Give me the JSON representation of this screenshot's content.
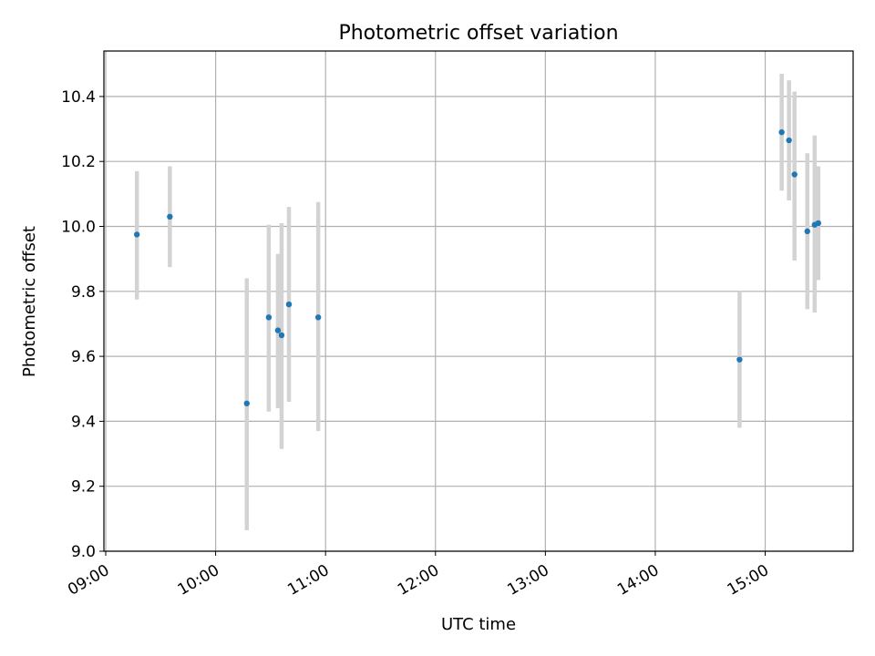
{
  "chart_data": {
    "type": "scatter",
    "title": "Photometric offset variation",
    "xlabel": "UTC time",
    "ylabel": "Photometric offset",
    "xlim": [
      "08:59",
      "15:48"
    ],
    "ylim": [
      9.0,
      10.54
    ],
    "x_ticks": [
      "09:00",
      "10:00",
      "11:00",
      "12:00",
      "13:00",
      "14:00",
      "15:00"
    ],
    "y_ticks": [
      "9.0",
      "9.2",
      "9.4",
      "9.6",
      "9.8",
      "10.0",
      "10.2",
      "10.4"
    ],
    "grid": true,
    "colors": {
      "points": "#1f77b4",
      "errorbars": "#d3d3d3",
      "grid": "#b0b0b0"
    },
    "points": [
      {
        "x": "09:17",
        "y": 9.975,
        "err_low": 9.775,
        "err_high": 10.17
      },
      {
        "x": "09:35",
        "y": 10.03,
        "err_low": 9.875,
        "err_high": 10.185
      },
      {
        "x": "10:17",
        "y": 9.455,
        "err_low": 9.065,
        "err_high": 9.84
      },
      {
        "x": "10:29",
        "y": 9.72,
        "err_low": 9.43,
        "err_high": 10.005
      },
      {
        "x": "10:34",
        "y": 9.68,
        "err_low": 9.44,
        "err_high": 9.915
      },
      {
        "x": "10:36",
        "y": 9.665,
        "err_low": 9.315,
        "err_high": 10.01
      },
      {
        "x": "10:40",
        "y": 9.76,
        "err_low": 9.46,
        "err_high": 10.06
      },
      {
        "x": "10:56",
        "y": 9.72,
        "err_low": 9.37,
        "err_high": 10.075
      },
      {
        "x": "14:46",
        "y": 9.59,
        "err_low": 9.38,
        "err_high": 9.8
      },
      {
        "x": "15:09",
        "y": 10.29,
        "err_low": 10.11,
        "err_high": 10.47
      },
      {
        "x": "15:13",
        "y": 10.265,
        "err_low": 10.08,
        "err_high": 10.45
      },
      {
        "x": "15:16",
        "y": 10.16,
        "err_low": 9.895,
        "err_high": 10.415
      },
      {
        "x": "15:23",
        "y": 9.985,
        "err_low": 9.745,
        "err_high": 10.225
      },
      {
        "x": "15:27",
        "y": 10.005,
        "err_low": 9.735,
        "err_high": 10.28
      },
      {
        "x": "15:29",
        "y": 10.01,
        "err_low": 9.835,
        "err_high": 10.185
      }
    ]
  }
}
